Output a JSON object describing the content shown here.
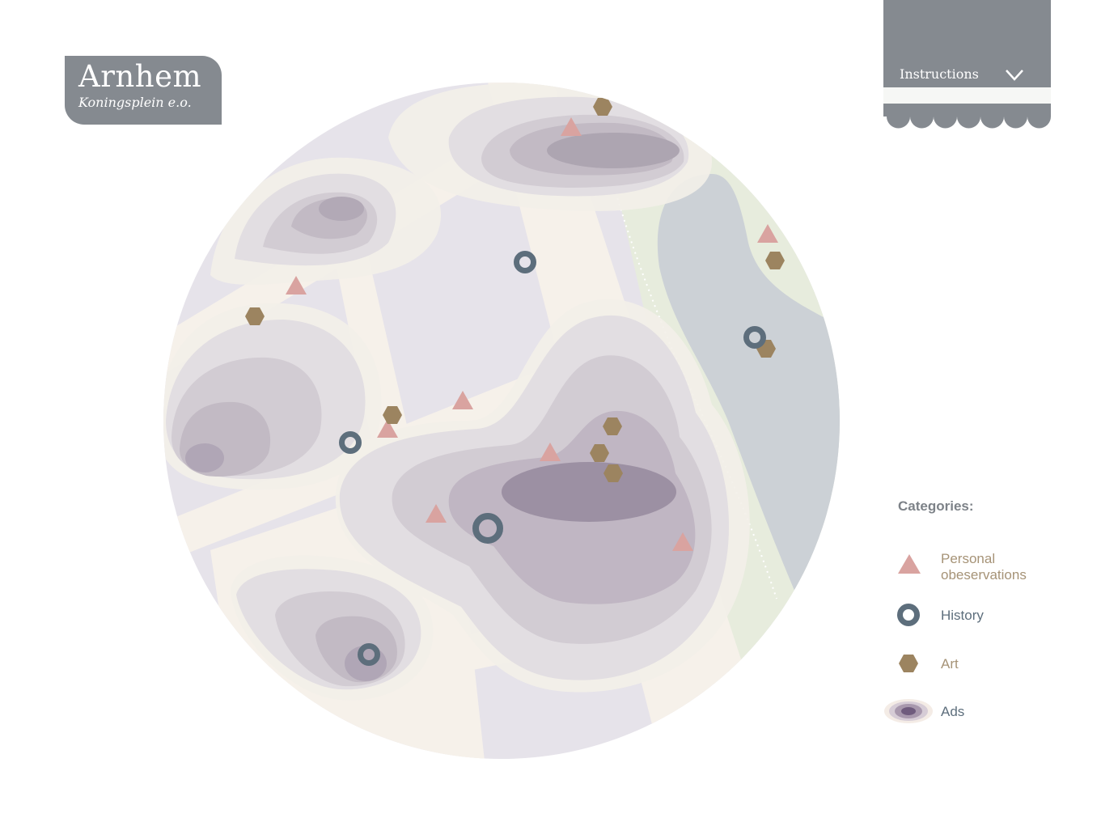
{
  "header": {
    "title": "Arnhem",
    "subtitle": "Koningsplein e.o."
  },
  "instructions": {
    "label": "Instructions",
    "icon": "chevron-down-icon"
  },
  "legend": {
    "title": "Categories:",
    "items": [
      {
        "label_line1": "Personal",
        "label_line2": "obeservations",
        "icon": "triangle-icon",
        "color": "#d9a3a0",
        "text_color": "#a69377"
      },
      {
        "label_line1": "History",
        "icon": "ring-icon",
        "color": "#5d6e7c",
        "text_color": "#5d6e7c"
      },
      {
        "label_line1": "Art",
        "icon": "hexagon-icon",
        "color": "#9c8460",
        "text_color": "#a69377"
      },
      {
        "label_line1": "Ads",
        "icon": "heat-blob-icon",
        "color": "#7a6888",
        "text_color": "#5d6e7c"
      }
    ]
  },
  "colors": {
    "badge": "#858a90",
    "water": "#ccd1d6",
    "park": "#e5ead8",
    "road": "#f6f1ea",
    "block": "#e4e1e8"
  }
}
